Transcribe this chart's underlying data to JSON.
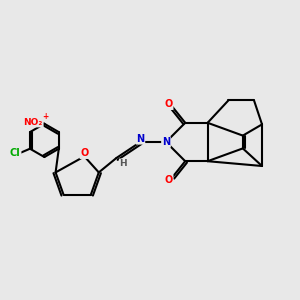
{
  "bg_color": "#e8e8e8",
  "bond_color": "#000000",
  "bond_width": 1.5,
  "atom_colors": {
    "O": "#ff0000",
    "N": "#0000cc",
    "Cl": "#00aa00",
    "H": "#555555",
    "C": "#000000"
  }
}
